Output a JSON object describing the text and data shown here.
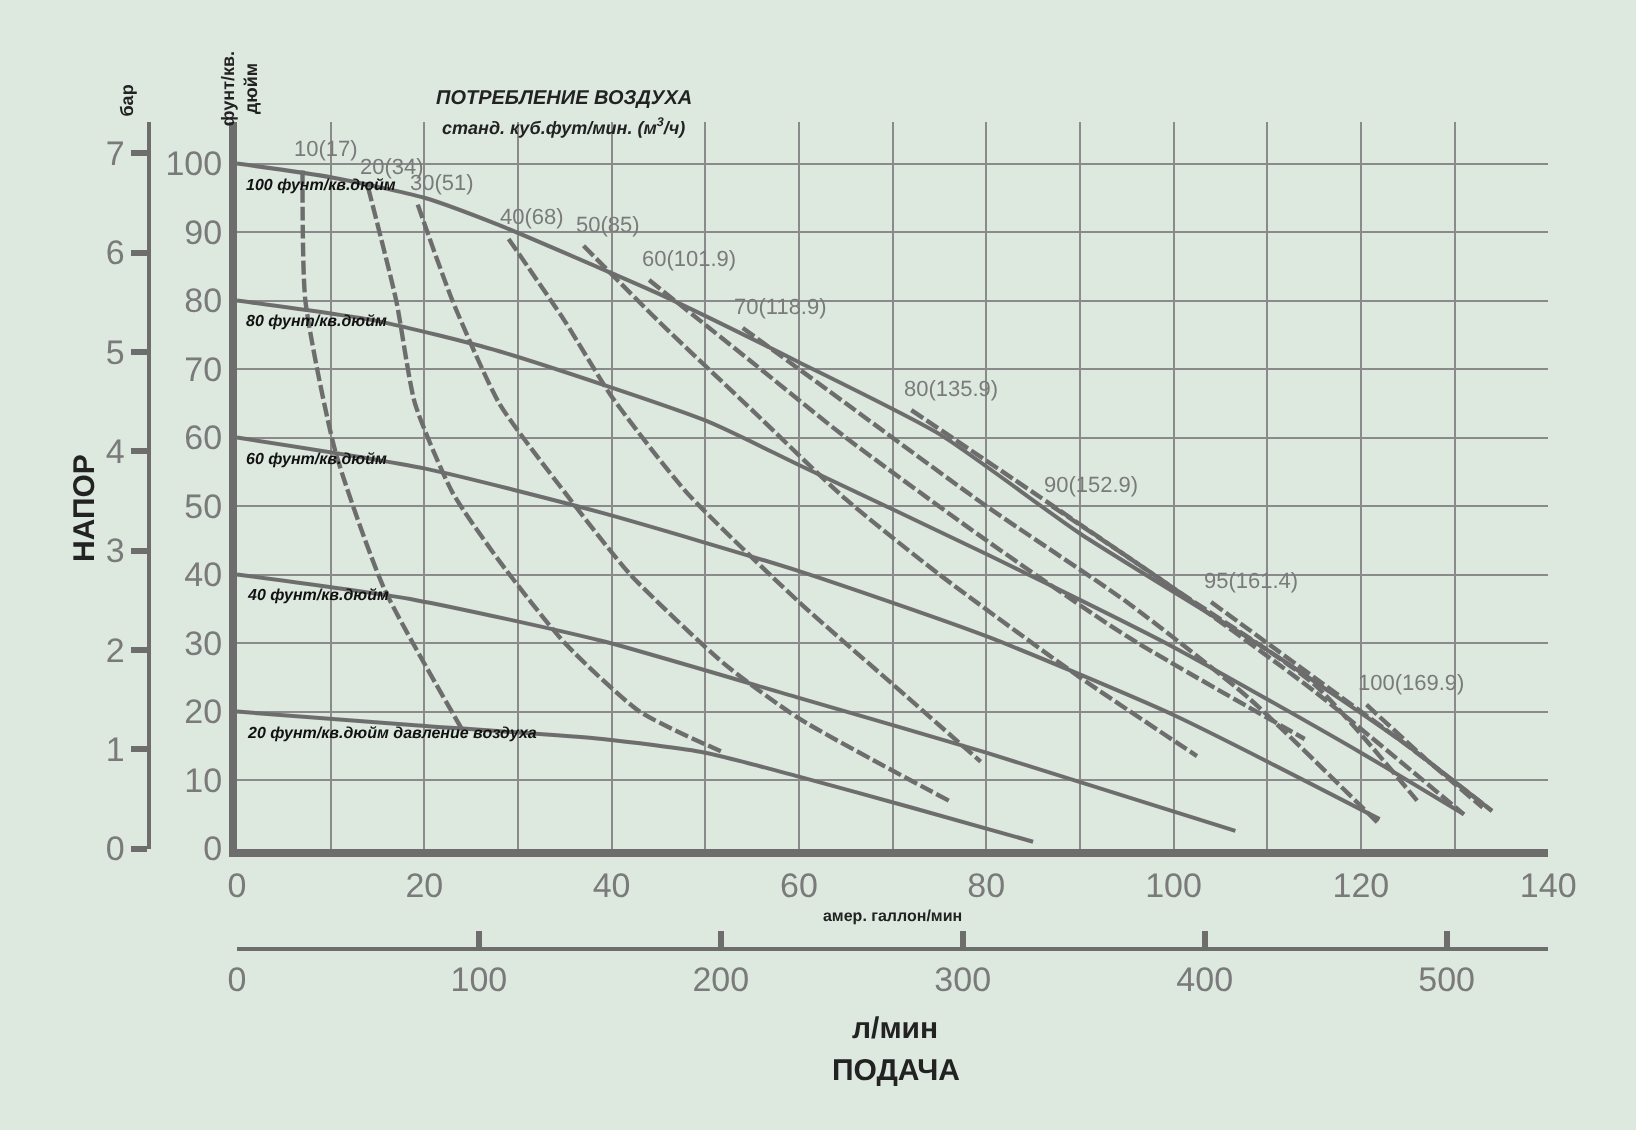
{
  "chart_data": {
    "type": "line",
    "title": "ПОТРЕБЛЕНИЕ ВОЗДУХА",
    "subtitle": "станд. куб.фут/мин. (м$^{3}$/ч)",
    "xlabel": "амер. галлон/мин",
    "ylabel": "фунт/кв. дюйм",
    "y2label": "бар",
    "x2label": "л/мин",
    "annotations": [
      "НАПОР",
      "ПОДАЧА"
    ],
    "xlim": [
      0,
      140
    ],
    "xticks": [
      0,
      {
        "value": 10,
        "label": null
      },
      20,
      {
        "value": 30,
        "label": null
      },
      40,
      {
        "value": 50,
        "label": null
      },
      60,
      {
        "value": 70,
        "label": null
      },
      80,
      {
        "value": 90,
        "label": null
      },
      100,
      {
        "value": 110,
        "label": null
      },
      120,
      {
        "value": 130,
        "label": null
      },
      140
    ],
    "ylim": [
      0,
      106
    ],
    "yticks": [
      0,
      10,
      20,
      30,
      40,
      50,
      60,
      70,
      80,
      90,
      100
    ],
    "y2lim": [
      0,
      7.31
    ],
    "y2ticks": [
      0,
      1,
      2,
      3,
      4,
      5,
      6,
      7
    ],
    "x2lim": [
      0,
      542
    ],
    "x2ticks": [
      0,
      100,
      200,
      300,
      400,
      500
    ],
    "grid": true,
    "legend": false,
    "marker": "none",
    "series": [
      {
        "name": "100 фунт/кв.дюйм",
        "color": "#6d6d6d",
        "line_style": "solid",
        "x": [
          0,
          10,
          20,
          28,
          40,
          45,
          60,
          75,
          90,
          110,
          125,
          134
        ],
        "values": [
          100,
          98,
          95,
          91,
          84,
          81,
          71,
          60.5,
          46,
          29,
          15,
          5.5
        ]
      },
      {
        "name": "80 фунт/кв.дюйм",
        "color": "#6d6d6d",
        "line_style": "solid",
        "x": [
          0,
          15,
          28,
          50,
          60,
          80,
          100,
          120,
          131
        ],
        "values": [
          80,
          77,
          72.6,
          62.5,
          56,
          43,
          29.4,
          14,
          5
        ]
      },
      {
        "name": "60 фунт/кв.дюйм",
        "color": "#6d6d6d",
        "line_style": "solid",
        "x": [
          0,
          20,
          39,
          60,
          80,
          100,
          122
        ],
        "values": [
          60,
          55.5,
          49,
          40.5,
          31,
          19.5,
          4.3
        ]
      },
      {
        "name": "40 фунт/кв.дюйм",
        "color": "#6d6d6d",
        "line_style": "solid",
        "x": [
          0,
          19,
          39,
          60,
          80,
          106.6
        ],
        "values": [
          40,
          36.3,
          30.3,
          22,
          14,
          2.6
        ]
      },
      {
        "name": "20 фунт/кв.дюйм давление воздуха",
        "color": "#6d6d6d",
        "line_style": "solid",
        "x": [
          0,
          19,
          39,
          50,
          60,
          72,
          85
        ],
        "values": [
          20,
          18,
          16,
          14,
          10.5,
          6,
          1
        ]
      },
      {
        "name": "10(17)",
        "color": "#6d6d6d",
        "line_style": "dashed",
        "x": [
          7,
          7.3,
          10.5,
          15.7,
          24.2
        ],
        "values": [
          99,
          80,
          58,
          38,
          17
        ]
      },
      {
        "name": "20(34)",
        "color": "#6d6d6d",
        "line_style": "dashed",
        "x": [
          14,
          17,
          19,
          23,
          28,
          35,
          43,
          52
        ],
        "values": [
          96.5,
          80,
          65,
          52,
          42,
          30,
          20,
          14
        ]
      },
      {
        "name": "30(51)",
        "color": "#6d6d6d",
        "line_style": "dashed",
        "x": [
          19.3,
          23,
          28,
          35,
          42,
          52,
          60,
          76
        ],
        "values": [
          94,
          80,
          65,
          52,
          40,
          27,
          19,
          7
        ]
      },
      {
        "name": "40(68)",
        "color": "#6d6d6d",
        "line_style": "dashed",
        "x": [
          29,
          35,
          40,
          48,
          60,
          70,
          79.4
        ],
        "values": [
          89,
          77,
          66,
          52,
          36,
          24,
          12.7
        ]
      },
      {
        "name": "50(85)",
        "color": "#6d6d6d",
        "line_style": "dashed",
        "x": [
          37,
          45,
          55,
          65,
          75,
          90,
          102.5
        ],
        "values": [
          88,
          77,
          64,
          51,
          40,
          25,
          13.5
        ]
      },
      {
        "name": "60(101.9)",
        "color": "#6d6d6d",
        "line_style": "dashed",
        "x": [
          44,
          55,
          65,
          80,
          95,
          114
        ],
        "values": [
          83,
          71,
          60,
          45,
          31,
          16
        ]
      },
      {
        "name": "70(118.9)",
        "color": "#6d6d6d",
        "line_style": "dashed",
        "x": [
          54,
          65,
          80,
          95,
          108,
          122
        ],
        "values": [
          76,
          65,
          50,
          36,
          22,
          3.5
        ]
      },
      {
        "name": "80(135.9)",
        "color": "#6d6d6d",
        "line_style": "dashed",
        "x": [
          72,
          85,
          100,
          115,
          126
        ],
        "values": [
          64,
          52,
          38,
          24,
          7
        ]
      },
      {
        "name": "90(152.9)",
        "color": "#6d6d6d",
        "line_style": "dashed",
        "x": [
          87,
          100,
          115,
          131
        ],
        "values": [
          50,
          38,
          23,
          5
        ]
      },
      {
        "name": "95(161.4)",
        "color": "#6d6d6d",
        "line_style": "dashed",
        "x": [
          104,
          115,
          125,
          134
        ],
        "values": [
          36,
          25,
          15,
          5.5
        ]
      },
      {
        "name": "100(169.9)",
        "color": "#6d6d6d",
        "line_style": "dashed",
        "x": [
          120.6,
          127,
          133
        ],
        "values": [
          21,
          13,
          6
        ]
      }
    ]
  }
}
